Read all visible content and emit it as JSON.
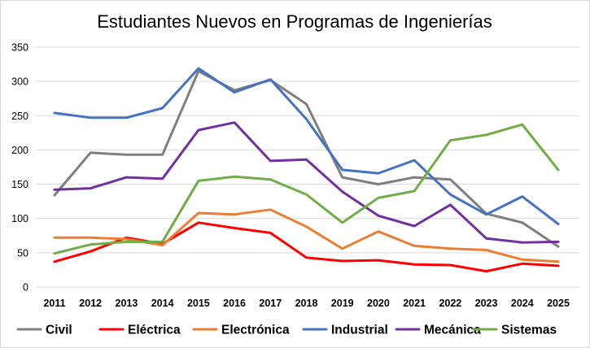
{
  "chart_data": {
    "type": "line",
    "title": "Estudiantes Nuevos en Programas de Ingenierías",
    "xlabel": "",
    "ylabel": "",
    "ylim": [
      0,
      350
    ],
    "yticks": [
      0,
      50,
      100,
      150,
      200,
      250,
      300,
      350
    ],
    "grid": true,
    "legend_position": "bottom",
    "categories": [
      "2011",
      "2012",
      "2013",
      "2014",
      "2015",
      "2016",
      "2017",
      "2018",
      "2019",
      "2020",
      "2021",
      "2022",
      "2023",
      "2024",
      "2025"
    ],
    "series": [
      {
        "name": "Civil",
        "color": "#7f7f7f",
        "values": [
          134,
          196,
          193,
          193,
          315,
          287,
          302,
          267,
          160,
          150,
          160,
          157,
          107,
          94,
          59
        ]
      },
      {
        "name": "Eléctrica",
        "color": "#ff0000",
        "values": [
          37,
          52,
          72,
          63,
          94,
          86,
          79,
          43,
          38,
          39,
          33,
          32,
          23,
          34,
          31
        ]
      },
      {
        "name": "Electrónica",
        "color": "#ed7d31",
        "values": [
          72,
          72,
          70,
          61,
          108,
          106,
          113,
          88,
          56,
          81,
          60,
          56,
          54,
          40,
          37
        ]
      },
      {
        "name": "Industrial",
        "color": "#4472c4",
        "values": [
          254,
          247,
          247,
          261,
          319,
          284,
          303,
          245,
          171,
          166,
          185,
          135,
          106,
          132,
          92
        ]
      },
      {
        "name": "Mecánica",
        "color": "#7030a0",
        "values": [
          142,
          144,
          160,
          158,
          229,
          240,
          184,
          186,
          139,
          104,
          89,
          120,
          71,
          65,
          66
        ]
      },
      {
        "name": "Sistemas",
        "color": "#70ad47",
        "values": [
          49,
          62,
          66,
          66,
          155,
          161,
          157,
          135,
          94,
          130,
          140,
          214,
          222,
          237,
          171
        ]
      }
    ]
  }
}
